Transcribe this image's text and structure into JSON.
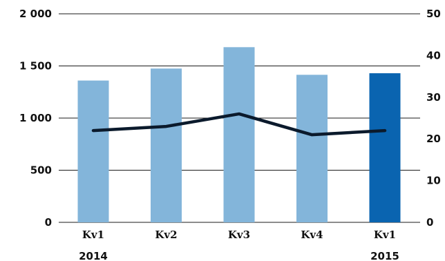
{
  "chart_data": {
    "type": "bar",
    "categories": [
      "Kv1",
      "Kv2",
      "Kv3",
      "Kv4",
      "Kv1"
    ],
    "years": [
      {
        "label": "2014",
        "index": 0
      },
      {
        "label": "2015",
        "index": 4
      }
    ],
    "series": [
      {
        "type": "bar",
        "axis": "left",
        "values": [
          1360,
          1475,
          1680,
          1415,
          1430
        ],
        "colors": [
          "#83b5da",
          "#83b5da",
          "#83b5da",
          "#83b5da",
          "#0a64b0"
        ]
      },
      {
        "type": "line",
        "axis": "right",
        "values": [
          22,
          23,
          26,
          21,
          22
        ],
        "color": "#0b1a2c"
      }
    ],
    "y_left": {
      "min": 0,
      "max": 2000,
      "ticks": [
        0,
        500,
        1000,
        1500,
        2000
      ],
      "tick_labels": [
        "0",
        "500",
        "1 000",
        "1 500",
        "2 000"
      ]
    },
    "y_right": {
      "min": 0,
      "max": 50,
      "ticks": [
        0,
        10,
        20,
        30,
        40,
        50
      ],
      "tick_labels": [
        "0",
        "10",
        "20",
        "30",
        "40",
        "50"
      ]
    },
    "grid": true,
    "title": "",
    "xlabel": "",
    "ylabel": ""
  }
}
